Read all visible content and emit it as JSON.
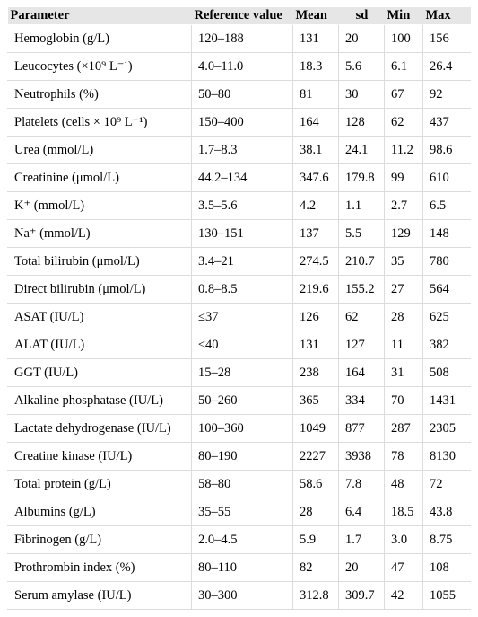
{
  "headers": [
    "Parameter",
    "Reference value",
    "Mean",
    "sd",
    "Min",
    "Max"
  ],
  "rows": [
    {
      "parameter": "Hemoglobin (g/L)",
      "reference": "120–188",
      "mean": "131",
      "sd": "20",
      "min": "100",
      "max": "156"
    },
    {
      "parameter": "Leucocytes (×10⁹ L⁻¹)",
      "reference": "4.0–11.0",
      "mean": "18.3",
      "sd": "5.6",
      "min": "6.1",
      "max": "26.4"
    },
    {
      "parameter": "Neutrophils (%)",
      "reference": "50–80",
      "mean": "81",
      "sd": "30",
      "min": "67",
      "max": "92"
    },
    {
      "parameter": "Platelets (cells × 10⁹ L⁻¹)",
      "reference": "150–400",
      "mean": "164",
      "sd": "128",
      "min": "62",
      "max": "437"
    },
    {
      "parameter": "Urea (mmol/L)",
      "reference": "1.7–8.3",
      "mean": "38.1",
      "sd": "24.1",
      "min": "11.2",
      "max": "98.6"
    },
    {
      "parameter": "Creatinine (μmol/L)",
      "reference": "44.2–134",
      "mean": "347.6",
      "sd": "179.8",
      "min": "99",
      "max": "610"
    },
    {
      "parameter": "K⁺ (mmol/L)",
      "reference": "3.5–5.6",
      "mean": "4.2",
      "sd": "1.1",
      "min": "2.7",
      "max": "6.5"
    },
    {
      "parameter": "Na⁺ (mmol/L)",
      "reference": "130–151",
      "mean": "137",
      "sd": "5.5",
      "min": "129",
      "max": "148"
    },
    {
      "parameter": "Total bilirubin (μmol/L)",
      "reference": "3.4–21",
      "mean": "274.5",
      "sd": "210.7",
      "min": "35",
      "max": "780"
    },
    {
      "parameter": "Direct bilirubin (μmol/L)",
      "reference": "0.8–8.5",
      "mean": "219.6",
      "sd": "155.2",
      "min": "27",
      "max": "564"
    },
    {
      "parameter": "ASAT (IU/L)",
      "reference": "≤37",
      "mean": "126",
      "sd": "62",
      "min": "28",
      "max": "625"
    },
    {
      "parameter": "ALAT (IU/L)",
      "reference": "≤40",
      "mean": "131",
      "sd": "127",
      "min": "11",
      "max": "382"
    },
    {
      "parameter": "GGT (IU/L)",
      "reference": "15–28",
      "mean": "238",
      "sd": "164",
      "min": "31",
      "max": "508"
    },
    {
      "parameter": "Alkaline phosphatase (IU/L)",
      "reference": "50–260",
      "mean": "365",
      "sd": "334",
      "min": "70",
      "max": "1431"
    },
    {
      "parameter": "Lactate dehydrogenase (IU/L)",
      "reference": "100–360",
      "mean": "1049",
      "sd": "877",
      "min": "287",
      "max": "2305"
    },
    {
      "parameter": "Creatine kinase (IU/L)",
      "reference": "80–190",
      "mean": "2227",
      "sd": "3938",
      "min": "78",
      "max": "8130"
    },
    {
      "parameter": "Total protein (g/L)",
      "reference": "58–80",
      "mean": "58.6",
      "sd": "7.8",
      "min": "48",
      "max": "72"
    },
    {
      "parameter": "Albumins (g/L)",
      "reference": "35–55",
      "mean": "28",
      "sd": "6.4",
      "min": "18.5",
      "max": "43.8"
    },
    {
      "parameter": "Fibrinogen (g/L)",
      "reference": "2.0–4.5",
      "mean": "5.9",
      "sd": "1.7",
      "min": "3.0",
      "max": "8.75"
    },
    {
      "parameter": "Prothrombin index (%)",
      "reference": "80–110",
      "mean": "82",
      "sd": "20",
      "min": "47",
      "max": "108"
    },
    {
      "parameter": "Serum amylase (IU/L)",
      "reference": "30–300",
      "mean": "312.8",
      "sd": "309.7",
      "min": "42",
      "max": "1055"
    }
  ]
}
